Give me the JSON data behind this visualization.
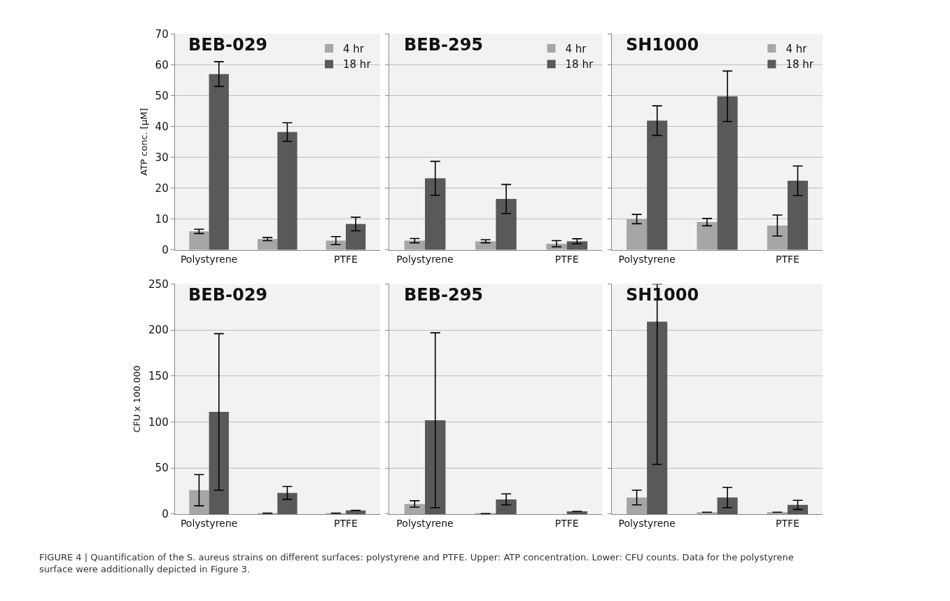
{
  "chart_data": [
    {
      "type": "bar",
      "title": "BEB-029",
      "ylabel": "ATP conc. [µM]",
      "categories": [
        "Polystyrene",
        null,
        "PTFE"
      ],
      "ylim": [
        0,
        70
      ],
      "yticks": [
        0,
        10,
        20,
        30,
        40,
        50,
        60,
        70
      ],
      "grid": "y",
      "legend": "top right",
      "series": [
        {
          "name": "4 hr",
          "color": "#a6a6a6",
          "values": [
            6,
            3.5,
            3
          ],
          "errors": [
            0.7,
            0.5,
            1.3
          ]
        },
        {
          "name": "18 hr",
          "color": "#595959",
          "values": [
            57,
            38.2,
            8.4
          ],
          "errors": [
            4,
            3,
            2.2
          ]
        }
      ]
    },
    {
      "type": "bar",
      "title": "BEB-295",
      "categories": [
        "Polystyrene",
        null,
        "PTFE"
      ],
      "ylim": [
        0,
        70
      ],
      "yticks": [
        0,
        10,
        20,
        30,
        40,
        50,
        60,
        70
      ],
      "grid": "y",
      "legend": "top right",
      "tick_labels": "x",
      "series": [
        {
          "name": "4 hr",
          "color": "#a6a6a6",
          "values": [
            3,
            2.8,
            2
          ],
          "errors": [
            0.7,
            0.5,
            1
          ]
        },
        {
          "name": "18 hr",
          "color": "#595959",
          "values": [
            23.2,
            16.5,
            2.8
          ],
          "errors": [
            5.5,
            4.7,
            0.8
          ]
        }
      ]
    },
    {
      "type": "bar",
      "title": "SH1000",
      "categories": [
        "Polystyrene",
        null,
        "PTFE"
      ],
      "ylim": [
        0,
        70
      ],
      "yticks": [
        0,
        10,
        20,
        30,
        40,
        50,
        60,
        70
      ],
      "grid": "y",
      "legend": "top right",
      "tick_labels": "x",
      "series": [
        {
          "name": "4 hr",
          "color": "#a6a6a6",
          "values": [
            10,
            9,
            7.9
          ],
          "errors": [
            1.5,
            1.2,
            3.4
          ]
        },
        {
          "name": "18 hr",
          "color": "#595959",
          "values": [
            41.9,
            49.8,
            22.4
          ],
          "errors": [
            4.8,
            8.2,
            4.8
          ]
        }
      ]
    },
    {
      "type": "bar",
      "title": "BEB-029",
      "ylabel": "CFU x 100.000",
      "categories": [
        "Polystyrene",
        null,
        "PTFE"
      ],
      "ylim": [
        0,
        250
      ],
      "yticks": [
        0,
        50,
        100,
        150,
        200,
        250
      ],
      "grid": "y",
      "series": [
        {
          "color": "#a6a6a6",
          "values": [
            26,
            1,
            1
          ],
          "errors": [
            17,
            null,
            null
          ]
        },
        {
          "color": "#595959",
          "values": [
            111,
            23,
            4
          ],
          "errors": [
            85,
            7,
            null
          ]
        }
      ]
    },
    {
      "type": "bar",
      "title": "BEB-295",
      "categories": [
        "Polystyrene",
        null,
        "PTFE"
      ],
      "ylim": [
        0,
        250
      ],
      "yticks": [
        0,
        50,
        100,
        150,
        200,
        250
      ],
      "grid": "y",
      "tick_labels": "x",
      "series": [
        {
          "color": "#a6a6a6",
          "values": [
            11,
            0.5,
            null
          ],
          "errors": [
            3.5,
            null,
            null
          ]
        },
        {
          "color": "#595959",
          "values": [
            102,
            16,
            3
          ],
          "errors": [
            95,
            6,
            null
          ]
        }
      ]
    },
    {
      "type": "bar",
      "title": "SH1000",
      "categories": [
        "Polystyrene",
        null,
        "PTFE"
      ],
      "ylim": [
        0,
        250
      ],
      "yticks": [
        0,
        50,
        100,
        150,
        200,
        250
      ],
      "grid": "y",
      "tick_labels": "x",
      "annotations": [
        "FIGURE 4 | Quantification of the S. aureus strains on different surfaces: polystyrene and PTFE. Upper: ATP concentration. Lower: CFU counts. Data for the polystyrene surface were additionally depicted in Figure 3."
      ],
      "series": [
        {
          "color": "#a6a6a6",
          "values": [
            18,
            2,
            2
          ],
          "errors": [
            8,
            null,
            null
          ]
        },
        {
          "color": "#595959",
          "values": [
            209,
            18,
            10
          ],
          "errors": [
            [
              54,
              250
            ],
            11,
            5
          ]
        }
      ]
    }
  ]
}
